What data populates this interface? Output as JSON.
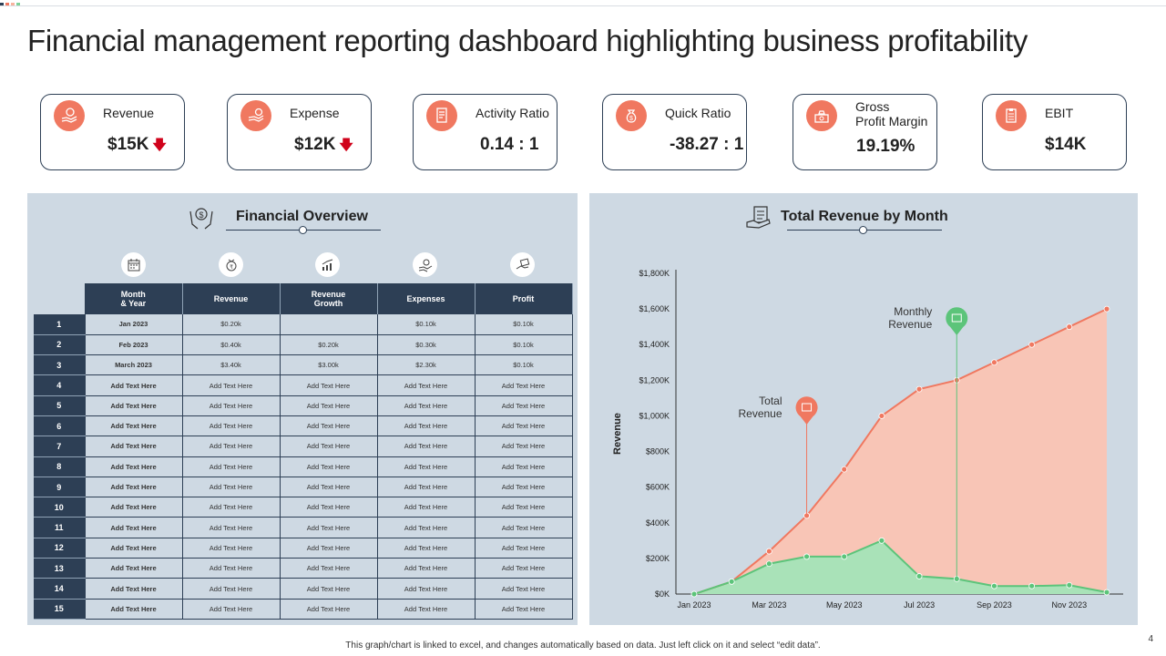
{
  "title": "Financial management reporting dashboard highlighting business profitability",
  "colors": {
    "accent": "#f07860",
    "navy": "#2d3f55",
    "panel": "#ced9e3",
    "green": "#5cc47a",
    "red": "#d0021b"
  },
  "kpis": [
    {
      "icon": "money-hand-icon",
      "label": "Revenue",
      "value": "$15K",
      "trend": "down"
    },
    {
      "icon": "coin-hand-icon",
      "label": "Expense",
      "value": "$12K",
      "trend": "down"
    },
    {
      "icon": "document-icon",
      "label": "Activity Ratio",
      "value": "0.14 : 1",
      "trend": ""
    },
    {
      "icon": "money-bag-icon",
      "label": "Quick Ratio",
      "value": "-38.27 : 1",
      "trend": ""
    },
    {
      "icon": "cash-stack-icon",
      "label_line1": "Gross",
      "label_line2": "Profit Margin",
      "value": "19.19%",
      "trend": ""
    },
    {
      "icon": "clipboard-icon",
      "label": "EBIT",
      "value": "$14K",
      "trend": ""
    }
  ],
  "overview": {
    "title": "Financial Overview",
    "headers": {
      "month_line1": "Month",
      "month_line2": "& Year",
      "revenue": "Revenue",
      "growth_line1": "Revenue",
      "growth_line2": "Growth",
      "expenses": "Expenses",
      "profit": "Profit"
    },
    "rows": [
      [
        "1",
        "Jan 2023",
        "$0.20k",
        "",
        "$0.10k",
        "$0.10k"
      ],
      [
        "2",
        "Feb 2023",
        "$0.40k",
        "$0.20k",
        "$0.30k",
        "$0.10k"
      ],
      [
        "3",
        "March 2023",
        "$3.40k",
        "$3.00k",
        "$2.30k",
        "$0.10k"
      ],
      [
        "4",
        "Add Text Here",
        "Add Text Here",
        "Add Text Here",
        "Add Text Here",
        "Add Text Here"
      ],
      [
        "5",
        "Add Text Here",
        "Add Text Here",
        "Add Text Here",
        "Add Text Here",
        "Add Text Here"
      ],
      [
        "6",
        "Add Text Here",
        "Add Text Here",
        "Add Text Here",
        "Add Text Here",
        "Add Text Here"
      ],
      [
        "7",
        "Add Text Here",
        "Add Text Here",
        "Add Text Here",
        "Add Text Here",
        "Add Text Here"
      ],
      [
        "8",
        "Add Text Here",
        "Add Text Here",
        "Add Text Here",
        "Add Text Here",
        "Add Text Here"
      ],
      [
        "9",
        "Add Text Here",
        "Add Text Here",
        "Add Text Here",
        "Add Text Here",
        "Add Text Here"
      ],
      [
        "10",
        "Add Text Here",
        "Add Text Here",
        "Add Text Here",
        "Add Text Here",
        "Add Text Here"
      ],
      [
        "11",
        "Add Text Here",
        "Add Text Here",
        "Add Text Here",
        "Add Text Here",
        "Add Text Here"
      ],
      [
        "12",
        "Add Text Here",
        "Add Text Here",
        "Add Text Here",
        "Add Text Here",
        "Add Text Here"
      ],
      [
        "13",
        "Add Text Here",
        "Add Text Here",
        "Add Text Here",
        "Add Text Here",
        "Add Text Here"
      ],
      [
        "14",
        "Add Text Here",
        "Add Text Here",
        "Add Text Here",
        "Add Text Here",
        "Add Text Here"
      ],
      [
        "15",
        "Add Text Here",
        "Add Text Here",
        "Add Text Here",
        "Add Text Here",
        "Add Text Here"
      ]
    ]
  },
  "chart_data": {
    "type": "area",
    "title": "Total Revenue by Month",
    "xlabel": "",
    "ylabel": "Revenue",
    "ylim": [
      0,
      1800
    ],
    "yticks": [
      0,
      200,
      400,
      600,
      800,
      1000,
      1200,
      1400,
      1600,
      1800
    ],
    "ytick_labels": [
      "$0K",
      "$200K",
      "$400K",
      "$600K",
      "$800K",
      "$1,000K",
      "$1,200K",
      "$1,400K",
      "$1,600K",
      "$1,800K"
    ],
    "x": [
      "Jan 2023",
      "Feb 2023",
      "Mar 2023",
      "Apr 2023",
      "May 2023",
      "Jun 2023",
      "Jul 2023",
      "Aug 2023",
      "Sep 2023",
      "Oct 2023",
      "Nov 2023",
      "Dec 2023"
    ],
    "xtick_labels": [
      "Jan 2023",
      "",
      "Mar 2023",
      "",
      "May 2023",
      "",
      "Jul 2023",
      "",
      "Sep 2023",
      "",
      "Nov 2023",
      ""
    ],
    "series": [
      {
        "name": "Total Revenue",
        "color": "#f07860",
        "values": [
          0,
          70,
          240,
          440,
          700,
          1000,
          1150,
          1200,
          1300,
          1400,
          1500,
          1600
        ]
      },
      {
        "name": "Monthly Revenue",
        "color": "#5cc47a",
        "values": [
          0,
          70,
          170,
          210,
          210,
          300,
          100,
          85,
          45,
          45,
          50,
          10
        ]
      }
    ],
    "annotations": [
      {
        "label_line1": "Total",
        "label_line2": "Revenue",
        "series": "Total Revenue",
        "x": "Apr 2023"
      },
      {
        "label_line1": "Monthly",
        "label_line2": "Revenue",
        "series": "Monthly Revenue",
        "x": "Aug 2023"
      }
    ]
  },
  "footer": "This graph/chart is linked to excel, and changes automatically based on data. Just left click on it and select “edit data”.",
  "page_number": "4"
}
